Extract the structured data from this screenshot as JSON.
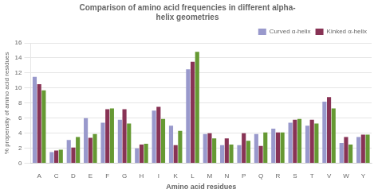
{
  "chart_data": {
    "type": "bar",
    "title": "Comparison of amino acid frequencies in different alpha-\nhelix geometries",
    "xlabel": "Amino acid residues",
    "ylabel": "% propensity of amino acid residues",
    "categories": [
      "A",
      "C",
      "D",
      "E",
      "F",
      "G",
      "H",
      "I",
      "K",
      "L",
      "M",
      "N",
      "P",
      "Q",
      "R",
      "S",
      "T",
      "V",
      "W",
      "Y"
    ],
    "series": [
      {
        "name": "Curved α-helix",
        "color": "#9999CC",
        "values": [
          11.5,
          1.5,
          3.1,
          6.0,
          5.4,
          5.8,
          2.0,
          7.0,
          5.0,
          12.5,
          3.9,
          2.4,
          2.4,
          3.9,
          4.6,
          5.4,
          5.0,
          8.2,
          2.7,
          3.5
        ]
      },
      {
        "name": "Kinked α-helix",
        "color": "#883355",
        "values": [
          10.5,
          1.7,
          2.1,
          3.4,
          7.2,
          7.2,
          2.5,
          7.5,
          2.4,
          13.5,
          4.0,
          3.3,
          4.0,
          2.3,
          4.1,
          5.8,
          5.8,
          8.8,
          3.5,
          3.8
        ]
      },
      {
        "color": "#669933",
        "values": [
          9.7,
          1.8,
          3.5,
          3.9,
          7.3,
          5.3,
          2.6,
          5.9,
          4.3,
          14.8,
          3.3,
          2.5,
          3.0,
          4.1,
          4.1,
          5.9,
          5.3,
          7.3,
          2.5,
          3.8
        ]
      }
    ],
    "ylim": [
      0,
      16
    ],
    "yticks": [
      0,
      2,
      4,
      6,
      8,
      10,
      12,
      14,
      16
    ],
    "grid": true,
    "legend": "upper right"
  }
}
